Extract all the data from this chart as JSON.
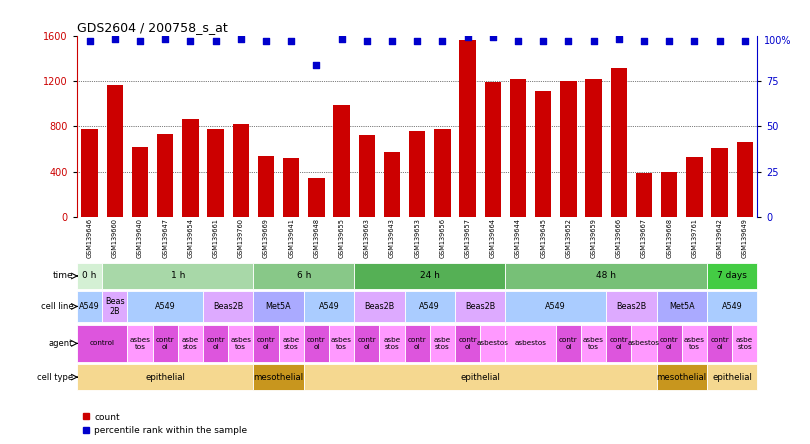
{
  "title": "GDS2604 / 200758_s_at",
  "samples": [
    "GSM139646",
    "GSM139660",
    "GSM139640",
    "GSM139647",
    "GSM139654",
    "GSM139661",
    "GSM139760",
    "GSM139669",
    "GSM139641",
    "GSM139648",
    "GSM139655",
    "GSM139663",
    "GSM139643",
    "GSM139653",
    "GSM139656",
    "GSM139657",
    "GSM139664",
    "GSM139644",
    "GSM139645",
    "GSM139652",
    "GSM139659",
    "GSM139666",
    "GSM139667",
    "GSM139668",
    "GSM139761",
    "GSM139642",
    "GSM139649"
  ],
  "counts": [
    780,
    1160,
    620,
    730,
    860,
    780,
    820,
    540,
    520,
    340,
    990,
    720,
    570,
    760,
    780,
    1560,
    1190,
    1220,
    1110,
    1200,
    1220,
    1310,
    390,
    400,
    530,
    610,
    660
  ],
  "percentile": [
    97,
    98,
    97,
    98,
    97,
    97,
    98,
    97,
    97,
    84,
    98,
    97,
    97,
    97,
    97,
    99,
    99,
    97,
    97,
    97,
    97,
    98,
    97,
    97,
    97,
    97,
    97
  ],
  "bar_color": "#cc0000",
  "dot_color": "#0000cc",
  "ylim_left": [
    0,
    1600
  ],
  "yticks_left": [
    0,
    400,
    800,
    1200,
    1600
  ],
  "ylim_right": [
    0,
    100
  ],
  "yticks_right": [
    0,
    25,
    50,
    75,
    100
  ],
  "time_row": {
    "label": "time",
    "segments": [
      {
        "text": "0 h",
        "start": 0,
        "end": 1,
        "color": "#d4f0d4"
      },
      {
        "text": "1 h",
        "start": 1,
        "end": 7,
        "color": "#a8d8a8"
      },
      {
        "text": "6 h",
        "start": 7,
        "end": 11,
        "color": "#88c888"
      },
      {
        "text": "24 h",
        "start": 11,
        "end": 17,
        "color": "#55b055"
      },
      {
        "text": "48 h",
        "start": 17,
        "end": 25,
        "color": "#77c077"
      },
      {
        "text": "7 days",
        "start": 25,
        "end": 27,
        "color": "#44cc44"
      }
    ]
  },
  "cellline_row": {
    "label": "cell line",
    "segments": [
      {
        "text": "A549",
        "start": 0,
        "end": 1,
        "color": "#aaccff"
      },
      {
        "text": "Beas\n2B",
        "start": 1,
        "end": 2,
        "color": "#ddaaff"
      },
      {
        "text": "A549",
        "start": 2,
        "end": 5,
        "color": "#aaccff"
      },
      {
        "text": "Beas2B",
        "start": 5,
        "end": 7,
        "color": "#ddaaff"
      },
      {
        "text": "Met5A",
        "start": 7,
        "end": 9,
        "color": "#aaaaff"
      },
      {
        "text": "A549",
        "start": 9,
        "end": 11,
        "color": "#aaccff"
      },
      {
        "text": "Beas2B",
        "start": 11,
        "end": 13,
        "color": "#ddaaff"
      },
      {
        "text": "A549",
        "start": 13,
        "end": 15,
        "color": "#aaccff"
      },
      {
        "text": "Beas2B",
        "start": 15,
        "end": 17,
        "color": "#ddaaff"
      },
      {
        "text": "A549",
        "start": 17,
        "end": 21,
        "color": "#aaccff"
      },
      {
        "text": "Beas2B",
        "start": 21,
        "end": 23,
        "color": "#ddaaff"
      },
      {
        "text": "Met5A",
        "start": 23,
        "end": 25,
        "color": "#aaaaff"
      },
      {
        "text": "A549",
        "start": 25,
        "end": 27,
        "color": "#aaccff"
      }
    ]
  },
  "agent_row": {
    "label": "agent",
    "segments": [
      {
        "text": "control",
        "start": 0,
        "end": 2,
        "color": "#dd55dd"
      },
      {
        "text": "asbes\ntos",
        "start": 2,
        "end": 3,
        "color": "#ff99ff"
      },
      {
        "text": "contr\nol",
        "start": 3,
        "end": 4,
        "color": "#dd55dd"
      },
      {
        "text": "asbe\nstos",
        "start": 4,
        "end": 5,
        "color": "#ff99ff"
      },
      {
        "text": "contr\nol",
        "start": 5,
        "end": 6,
        "color": "#dd55dd"
      },
      {
        "text": "asbes\ntos",
        "start": 6,
        "end": 7,
        "color": "#ff99ff"
      },
      {
        "text": "contr\nol",
        "start": 7,
        "end": 8,
        "color": "#dd55dd"
      },
      {
        "text": "asbe\nstos",
        "start": 8,
        "end": 9,
        "color": "#ff99ff"
      },
      {
        "text": "contr\nol",
        "start": 9,
        "end": 10,
        "color": "#dd55dd"
      },
      {
        "text": "asbes\ntos",
        "start": 10,
        "end": 11,
        "color": "#ff99ff"
      },
      {
        "text": "contr\nol",
        "start": 11,
        "end": 12,
        "color": "#dd55dd"
      },
      {
        "text": "asbe\nstos",
        "start": 12,
        "end": 13,
        "color": "#ff99ff"
      },
      {
        "text": "contr\nol",
        "start": 13,
        "end": 14,
        "color": "#dd55dd"
      },
      {
        "text": "asbe\nstos",
        "start": 14,
        "end": 15,
        "color": "#ff99ff"
      },
      {
        "text": "contr\nol",
        "start": 15,
        "end": 16,
        "color": "#dd55dd"
      },
      {
        "text": "asbestos",
        "start": 16,
        "end": 17,
        "color": "#ff99ff"
      },
      {
        "text": "asbestos",
        "start": 17,
        "end": 19,
        "color": "#ff99ff"
      },
      {
        "text": "contr\nol",
        "start": 19,
        "end": 20,
        "color": "#dd55dd"
      },
      {
        "text": "asbes\ntos",
        "start": 20,
        "end": 21,
        "color": "#ff99ff"
      },
      {
        "text": "contr\nol",
        "start": 21,
        "end": 22,
        "color": "#dd55dd"
      },
      {
        "text": "asbestos",
        "start": 22,
        "end": 23,
        "color": "#ff99ff"
      },
      {
        "text": "contr\nol",
        "start": 23,
        "end": 24,
        "color": "#dd55dd"
      },
      {
        "text": "asbes\ntos",
        "start": 24,
        "end": 25,
        "color": "#ff99ff"
      },
      {
        "text": "contr\nol",
        "start": 25,
        "end": 26,
        "color": "#dd55dd"
      },
      {
        "text": "asbe\nstos",
        "start": 26,
        "end": 27,
        "color": "#ff99ff"
      }
    ]
  },
  "celltype_row": {
    "label": "cell type",
    "segments": [
      {
        "text": "epithelial",
        "start": 0,
        "end": 7,
        "color": "#f5d890"
      },
      {
        "text": "mesothelial",
        "start": 7,
        "end": 9,
        "color": "#c8961e"
      },
      {
        "text": "epithelial",
        "start": 9,
        "end": 23,
        "color": "#f5d890"
      },
      {
        "text": "mesothelial",
        "start": 23,
        "end": 25,
        "color": "#c8961e"
      },
      {
        "text": "epithelial",
        "start": 25,
        "end": 27,
        "color": "#f5d890"
      }
    ]
  },
  "legend_count_color": "#cc0000",
  "legend_pct_color": "#0000cc",
  "bg_color": "#ffffff"
}
